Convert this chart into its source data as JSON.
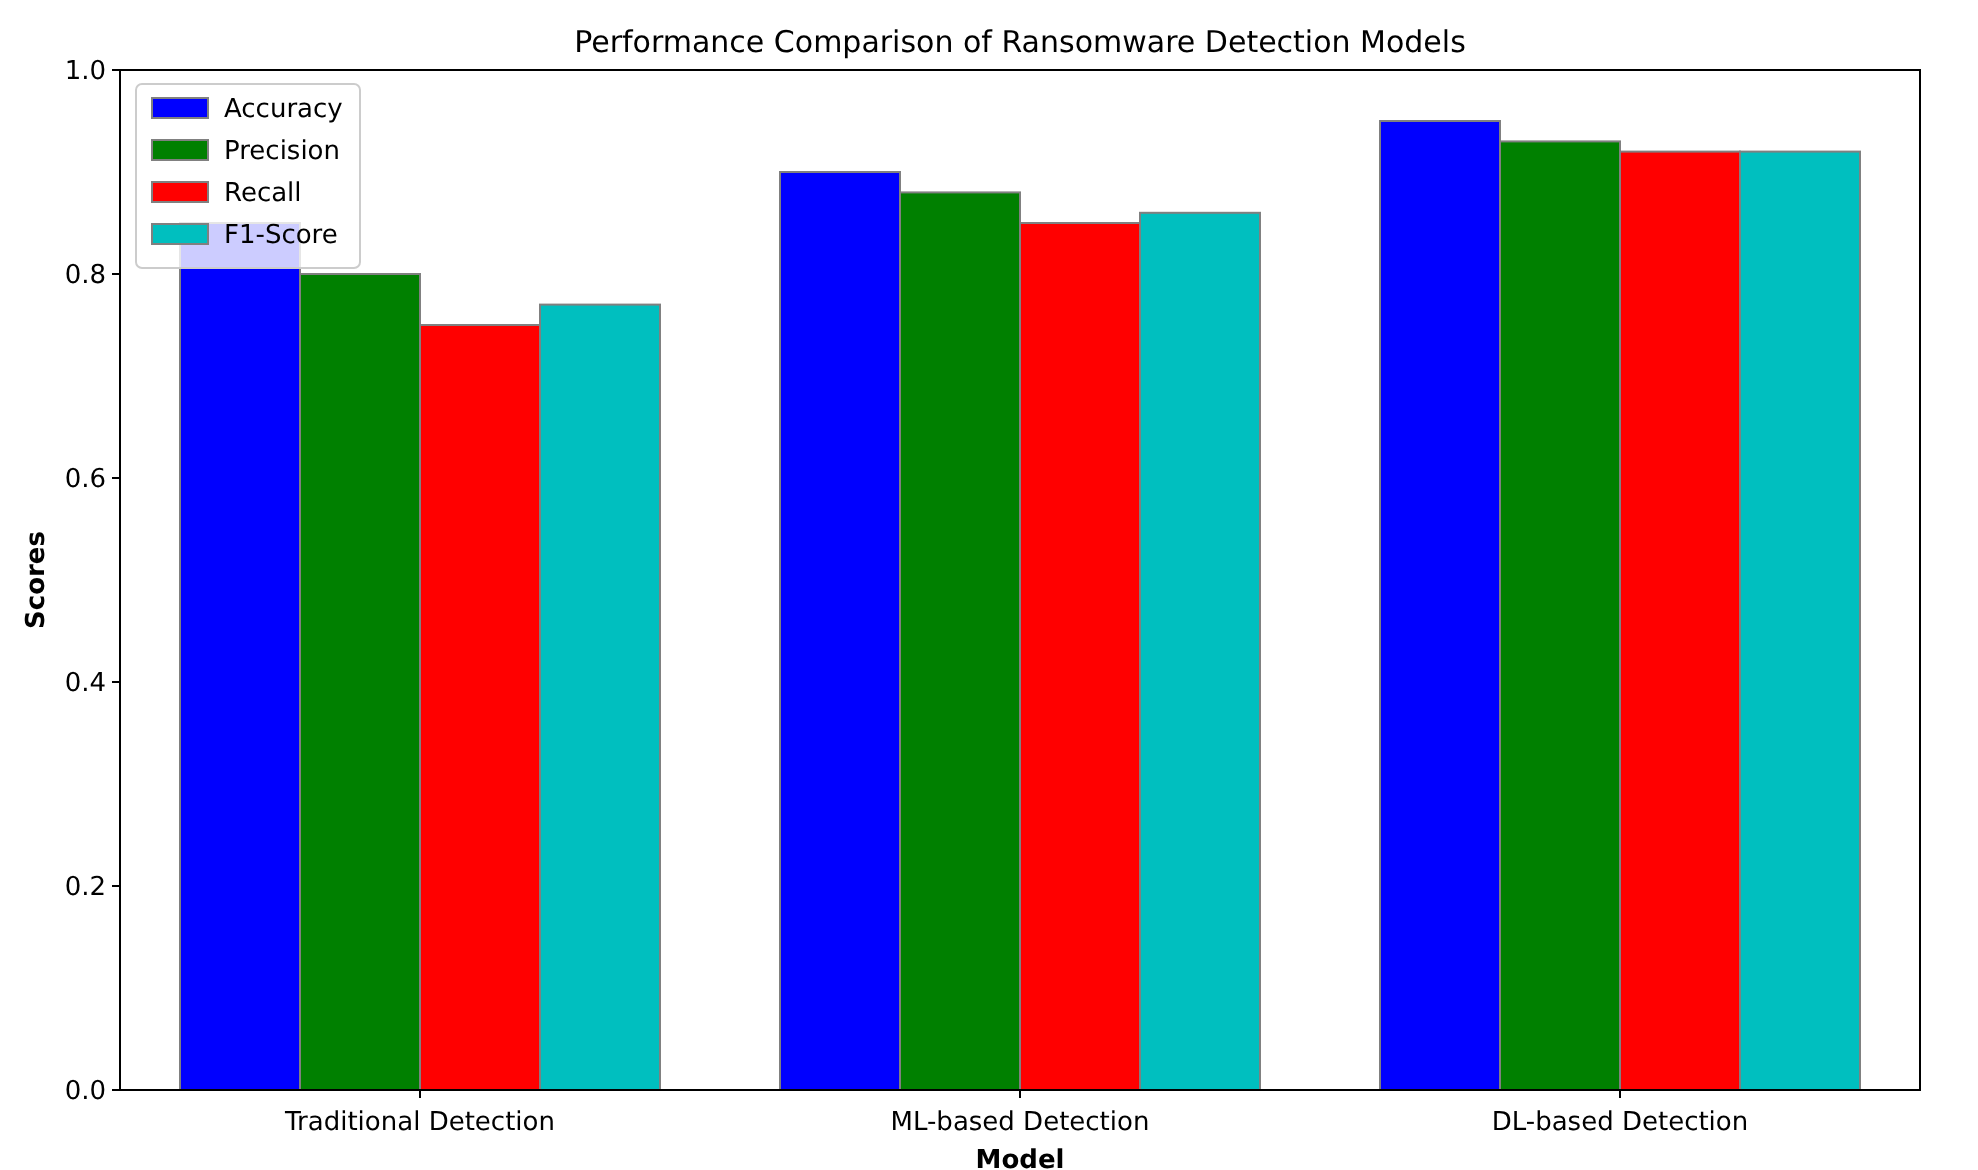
{
  "chart_data": {
    "type": "bar",
    "title": "Performance Comparison of Ransomware Detection Models",
    "xlabel": "Model",
    "ylabel": "Scores",
    "categories": [
      "Traditional Detection",
      "ML-based Detection",
      "DL-based Detection"
    ],
    "series": [
      {
        "name": "Accuracy",
        "color": "#0000ff",
        "values": [
          0.85,
          0.9,
          0.95
        ]
      },
      {
        "name": "Precision",
        "color": "#008000",
        "values": [
          0.8,
          0.88,
          0.93
        ]
      },
      {
        "name": "Recall",
        "color": "#ff0000",
        "values": [
          0.75,
          0.85,
          0.92
        ]
      },
      {
        "name": "F1-Score",
        "color": "#00bfbf",
        "values": [
          0.77,
          0.86,
          0.92
        ]
      }
    ],
    "ylim": [
      0,
      1
    ],
    "yticks": [
      {
        "value": 0,
        "label": "0.0"
      },
      {
        "value": 0.2,
        "label": "0.2"
      },
      {
        "value": 0.4,
        "label": "0.4"
      },
      {
        "value": 0.6,
        "label": "0.6"
      },
      {
        "value": 0.8,
        "label": "0.8"
      },
      {
        "value": 1,
        "label": "1.0"
      }
    ],
    "grid": false,
    "legend": "top left"
  }
}
